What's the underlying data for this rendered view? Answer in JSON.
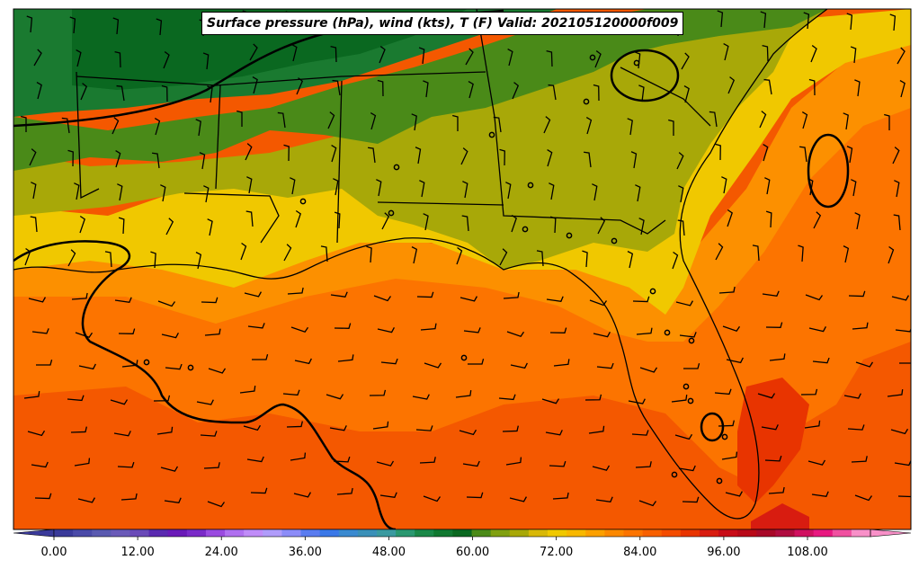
{
  "title": "Surface pressure (hPa), wind (kts), T (F) Valid: 202105120000f009",
  "colorbar": {
    "tick_labels": [
      "0.00",
      "12.00",
      "24.00",
      "36.00",
      "48.00",
      "60.00",
      "72.00",
      "84.00",
      "96.00",
      "108.00"
    ],
    "min": -6,
    "max": 123,
    "step": 3,
    "colors": [
      "#3a3a9a",
      "#4a4aa8",
      "#5a5ab0",
      "#6a5ab8",
      "#6a4ab8",
      "#5a2ab0",
      "#6a1ab8",
      "#7a2ac8",
      "#9a4ae0",
      "#b070f0",
      "#c08cf8",
      "#b09cfa",
      "#8c8cf8",
      "#5a7cf0",
      "#3a78e8",
      "#3a8ad0",
      "#3a90b8",
      "#3a9aa0",
      "#2a9870",
      "#1a8848",
      "#107830",
      "#0a6820",
      "#4a8a18",
      "#80a010",
      "#a8a808",
      "#d8b808",
      "#f0c800",
      "#f8b800",
      "#fca000",
      "#fc8800",
      "#fc7400",
      "#f86000",
      "#f44c00",
      "#e83400",
      "#d81c10",
      "#c80c18",
      "#b80818",
      "#a80828",
      "#b00c40",
      "#d01060",
      "#e81880",
      "#f050a0",
      "#f890c8"
    ]
  },
  "map_colors": {
    "cold_green": "#0a6820",
    "mid_green": "#1a7a30",
    "olive_green": "#4a8a18",
    "olive": "#a8a808",
    "yellow": "#f0c800",
    "orange": "#fc9000",
    "deep_orange": "#fc7400",
    "red_orange": "#f45800",
    "red": "#e83400"
  }
}
